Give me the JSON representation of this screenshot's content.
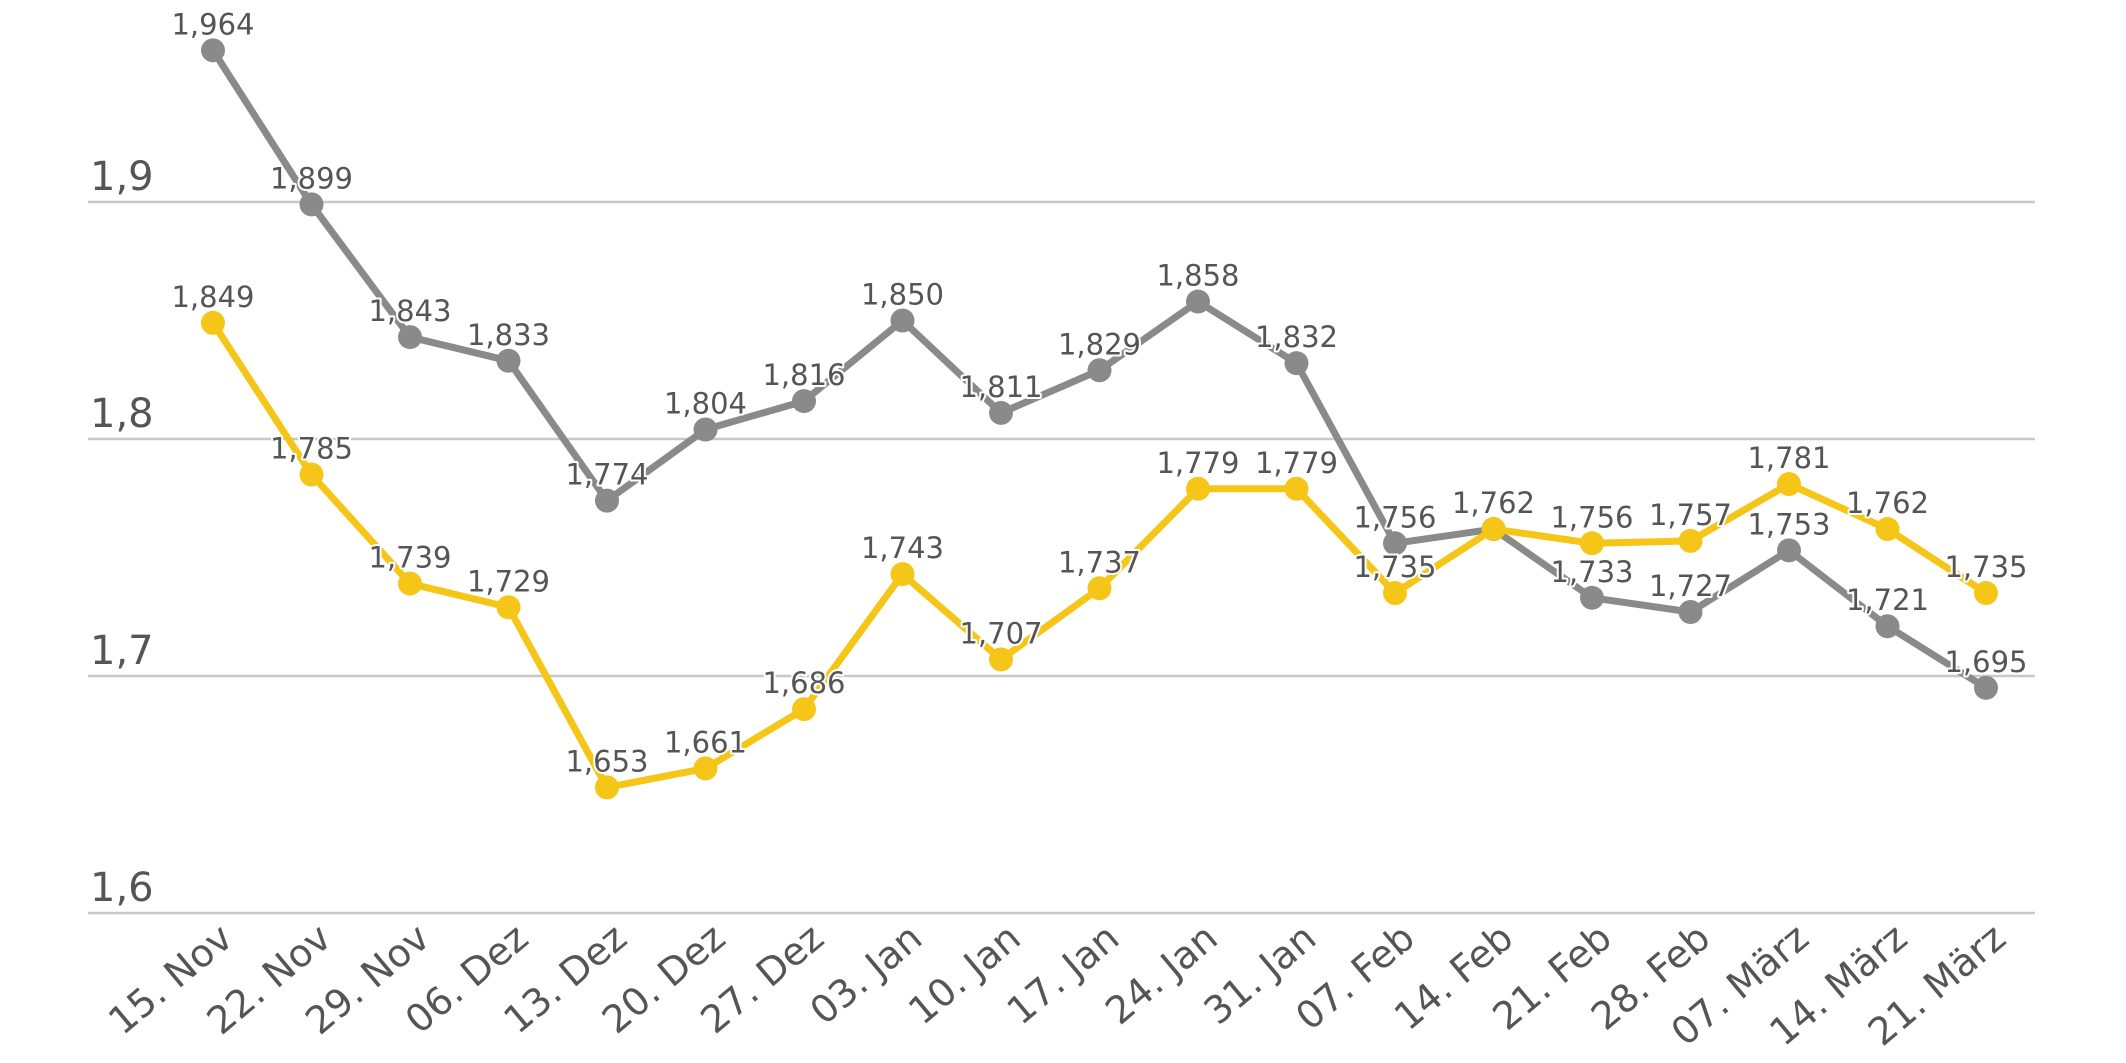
{
  "chart_data": {
    "type": "line",
    "title": "",
    "xlabel": "",
    "ylabel": "",
    "categories": [
      "15. Nov",
      "22. Nov",
      "29. Nov",
      "06. Dez",
      "13. Dez",
      "20. Dez",
      "27. Dez",
      "03. Jan",
      "10. Jan",
      "17. Jan",
      "24. Jan",
      "31. Jan",
      "07. Feb",
      "14. Feb",
      "21. Feb",
      "28. Feb",
      "07. März",
      "14. März",
      "21. März"
    ],
    "y_ticks": [
      1.6,
      1.7,
      1.8,
      1.9
    ],
    "y_tick_labels": [
      "1,6",
      "1,7",
      "1,8",
      "1,9"
    ],
    "ylim": [
      1.6,
      1.98
    ],
    "grid": true,
    "legend": "none",
    "series": [
      {
        "name": "grau",
        "color": "#8a8a8a",
        "values": [
          1.964,
          1.899,
          1.843,
          1.833,
          1.774,
          1.804,
          1.816,
          1.85,
          1.811,
          1.829,
          1.858,
          1.832,
          1.756,
          1.762,
          1.733,
          1.727,
          1.753,
          1.721,
          1.695
        ],
        "labels": [
          "1,964",
          "1,899",
          "1,843",
          "1,833",
          "1,774",
          "1,804",
          "1,816",
          "1,850",
          "1,811",
          "1,829",
          "1,858",
          "1,832",
          "1,756",
          "1,762",
          "1,733",
          "1,727",
          "1,753",
          "1,721",
          "1,695"
        ]
      },
      {
        "name": "gelb",
        "color": "#f5c518",
        "values": [
          1.849,
          1.785,
          1.739,
          1.729,
          1.653,
          1.661,
          1.686,
          1.743,
          1.707,
          1.737,
          1.779,
          1.779,
          1.735,
          1.762,
          1.756,
          1.757,
          1.781,
          1.762,
          1.735
        ],
        "labels": [
          "1,849",
          "1,785",
          "1,739",
          "1,729",
          "1,653",
          "1,661",
          "1,686",
          "1,743",
          "1,707",
          "1,737",
          "1,779",
          "1,779",
          "1,735",
          "",
          "1,756",
          "1,757",
          "1,781",
          "1,762",
          "1,735"
        ]
      }
    ]
  }
}
